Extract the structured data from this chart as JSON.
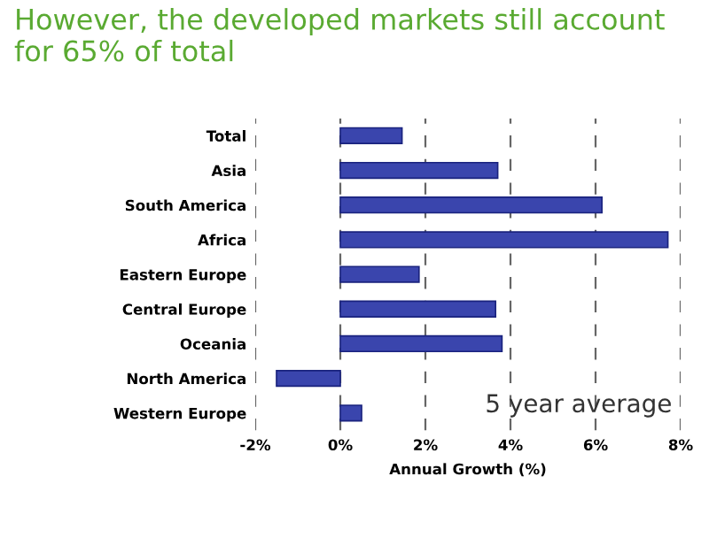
{
  "chart_data": {
    "type": "bar",
    "orientation": "horizontal",
    "title": "However, the developed markets still account for 65% of total",
    "categories": [
      "Total",
      "Asia",
      "South America",
      "Africa",
      "Eastern Europe",
      "Central Europe",
      "Oceania",
      "North America",
      "Western Europe"
    ],
    "series": [
      {
        "color": "#3a45ad",
        "values": [
          1.45,
          3.7,
          6.15,
          7.7,
          1.85,
          3.65,
          3.8,
          -1.5,
          0.5
        ]
      }
    ],
    "xlim": [
      -2,
      8
    ],
    "xticks": [
      {
        "value": -2,
        "label": "-2%"
      },
      {
        "value": 0,
        "label": "0%"
      },
      {
        "value": 2,
        "label": "2%"
      },
      {
        "value": 4,
        "label": "4%"
      },
      {
        "value": 6,
        "label": "6%"
      },
      {
        "value": 8,
        "label": "8%"
      }
    ],
    "xlabel": "Annual Growth (%)",
    "annotations": [
      "5 year average"
    ],
    "grid": "x"
  }
}
